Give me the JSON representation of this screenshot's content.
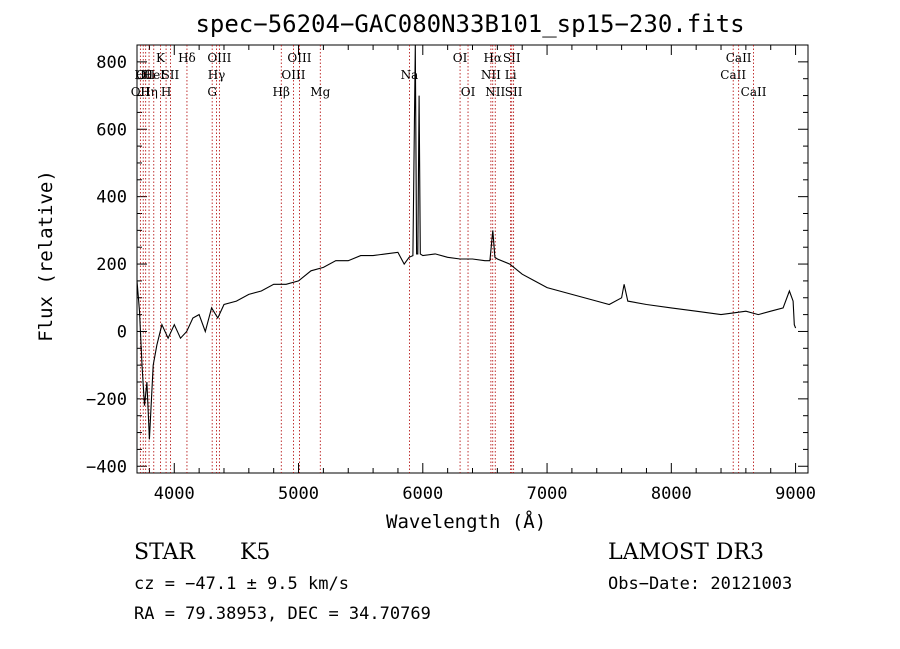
{
  "chart_data": {
    "type": "line",
    "title": "spec−56204−GAC080N33B101_sp15−230.fits",
    "xlabel": "Wavelength (Å)",
    "ylabel": "Flux (relative)",
    "xlim": [
      3700,
      9100
    ],
    "ylim": [
      -420,
      850
    ],
    "xticks": [
      4000,
      5000,
      6000,
      7000,
      8000,
      9000
    ],
    "xtick_labels": [
      "4000",
      "5000",
      "6000",
      "7000",
      "8000",
      "9000"
    ],
    "yticks": [
      -400,
      -200,
      0,
      200,
      400,
      600,
      800
    ],
    "ytick_labels": [
      "−400",
      "−200",
      "0",
      "200",
      "400",
      "600",
      "800"
    ],
    "series": [
      {
        "name": "spectrum",
        "x": [
          3700,
          3720,
          3740,
          3760,
          3780,
          3800,
          3830,
          3860,
          3900,
          3950,
          4000,
          4050,
          4100,
          4150,
          4200,
          4250,
          4300,
          4350,
          4400,
          4500,
          4600,
          4700,
          4800,
          4900,
          5000,
          5100,
          5200,
          5300,
          5400,
          5500,
          5600,
          5700,
          5800,
          5850,
          5890,
          5920,
          5940,
          5950,
          5960,
          5970,
          5980,
          6000,
          6100,
          6200,
          6300,
          6400,
          6500,
          6540,
          6563,
          6580,
          6600,
          6700,
          6800,
          6900,
          7000,
          7200,
          7400,
          7500,
          7600,
          7620,
          7650,
          7800,
          8000,
          8200,
          8400,
          8500,
          8600,
          8700,
          8800,
          8900,
          8950,
          8980,
          8990,
          9000
        ],
        "values": [
          150,
          60,
          -100,
          -220,
          -150,
          -320,
          -100,
          -40,
          20,
          -20,
          20,
          -20,
          0,
          40,
          50,
          0,
          70,
          40,
          80,
          90,
          110,
          120,
          140,
          140,
          150,
          180,
          190,
          210,
          210,
          225,
          225,
          230,
          235,
          200,
          220,
          225,
          860,
          230,
          230,
          700,
          230,
          225,
          230,
          220,
          215,
          215,
          210,
          210,
          300,
          220,
          215,
          200,
          170,
          150,
          130,
          110,
          90,
          80,
          100,
          140,
          90,
          80,
          70,
          60,
          50,
          55,
          60,
          50,
          60,
          70,
          120,
          90,
          20,
          10
        ]
      }
    ],
    "line_markers": [
      {
        "wl": 3727,
        "label": "OII",
        "row": 2
      },
      {
        "wl": 3750,
        "label": "Hθ",
        "row": 1
      },
      {
        "wl": 3770,
        "label": "OII",
        "row": 1
      },
      {
        "wl": 3797,
        "label": "Hη",
        "row": 2
      },
      {
        "wl": 3835,
        "label": "HeI",
        "row": 1
      },
      {
        "wl": 3889,
        "label": "K",
        "row": 0
      },
      {
        "wl": 3934,
        "label": "H",
        "row": 2
      },
      {
        "wl": 3969,
        "label": "SII",
        "row": 1
      },
      {
        "wl": 4102,
        "label": "Hδ",
        "row": 0
      },
      {
        "wl": 4305,
        "label": "G",
        "row": 2
      },
      {
        "wl": 4340,
        "label": "Hγ",
        "row": 1
      },
      {
        "wl": 4363,
        "label": "OIII",
        "row": 0
      },
      {
        "wl": 4861,
        "label": "Hβ",
        "row": 2
      },
      {
        "wl": 4959,
        "label": "OIII",
        "row": 1
      },
      {
        "wl": 5007,
        "label": "OIII",
        "row": 0
      },
      {
        "wl": 5175,
        "label": "Mg",
        "row": 2
      },
      {
        "wl": 5893,
        "label": "Na",
        "row": 1
      },
      {
        "wl": 6300,
        "label": "OI",
        "row": 0
      },
      {
        "wl": 6364,
        "label": "OI",
        "row": 2
      },
      {
        "wl": 6548,
        "label": "NII",
        "row": 1
      },
      {
        "wl": 6563,
        "label": "Hα",
        "row": 0
      },
      {
        "wl": 6583,
        "label": "NII",
        "row": 2
      },
      {
        "wl": 6707,
        "label": "Li",
        "row": 1
      },
      {
        "wl": 6716,
        "label": "SII",
        "row": 0
      },
      {
        "wl": 6731,
        "label": "SII",
        "row": 2
      },
      {
        "wl": 8498,
        "label": "CaII",
        "row": 1
      },
      {
        "wl": 8542,
        "label": "CaII",
        "row": 0
      },
      {
        "wl": 8662,
        "label": "CaII",
        "row": 2
      }
    ]
  },
  "info": {
    "class_label": "STAR",
    "subclass_label": "K5",
    "survey_label": "LAMOST DR3",
    "cz_text": "cz = −47.1 ± 9.5 km/s",
    "obs_date_text": "Obs−Date: 20121003",
    "coords_text": "RA =  79.38953, DEC =  34.70769"
  }
}
